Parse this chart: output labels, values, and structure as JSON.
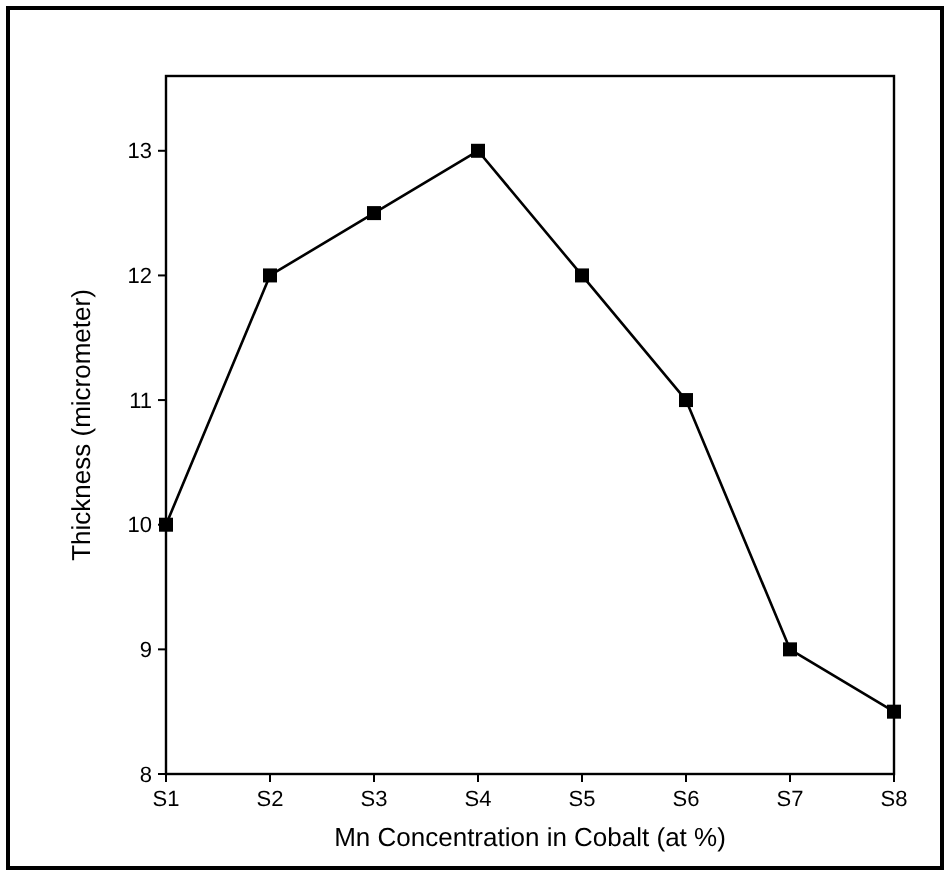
{
  "chart_data": {
    "type": "line",
    "xlabel": "Mn Concentration in Cobalt (at %)",
    "ylabel": "Thickness (micrometer)",
    "categories": [
      "S1",
      "S2",
      "S3",
      "S4",
      "S5",
      "S6",
      "S7",
      "S8"
    ],
    "series": [
      {
        "color": "#000000",
        "values": [
          10,
          12,
          12.5,
          13,
          12,
          11,
          9,
          8.5
        ]
      }
    ],
    "ylim": [
      8,
      13.6
    ],
    "yticks": [
      8,
      9,
      10,
      11,
      12,
      13
    ],
    "marker": "square",
    "line_style": "solid"
  }
}
